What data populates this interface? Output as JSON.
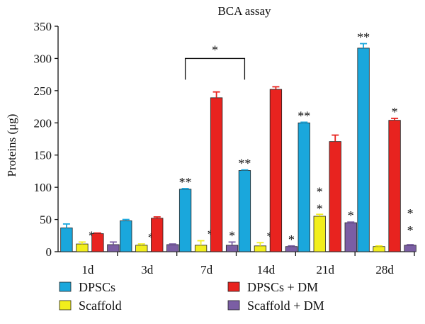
{
  "chart_data": {
    "type": "bar",
    "title": "BCA assay",
    "xlabel": "",
    "ylabel": "Proteins (μg)",
    "ylim": [
      0,
      350
    ],
    "yticks": [
      0,
      50,
      100,
      150,
      200,
      250,
      300,
      350
    ],
    "grid": false,
    "legend_placement": "bottom",
    "categories": [
      "1d",
      "3d",
      "7d",
      "14d",
      "21d",
      "28d"
    ],
    "series": [
      {
        "name": "DPSCs",
        "color": "#1aa7dc",
        "values": [
          37,
          48,
          97,
          126,
          200,
          316
        ],
        "errors": [
          6,
          2,
          1,
          1,
          1,
          7
        ],
        "annotations": [
          "",
          "",
          "**",
          "**",
          "**",
          "**"
        ]
      },
      {
        "name": "Scaffold",
        "color": "#f2ee1c",
        "values": [
          12,
          10,
          10,
          9,
          55,
          8
        ],
        "errors": [
          3,
          2,
          7,
          5,
          3,
          1
        ],
        "annotations": [
          "*",
          "*",
          "*",
          "*",
          "**",
          ""
        ]
      },
      {
        "name": "DPSCs + DM",
        "color": "#e8231f",
        "values": [
          28,
          52,
          239,
          252,
          171,
          204
        ],
        "errors": [
          1,
          2,
          9,
          4,
          10,
          3
        ],
        "annotations": [
          "",
          "",
          "",
          "",
          "",
          "*"
        ]
      },
      {
        "name": "Scaffold + DM",
        "color": "#7b5ea4",
        "values": [
          11,
          11,
          10,
          8,
          45,
          10
        ],
        "errors": [
          4,
          1,
          5,
          1,
          1,
          1
        ],
        "annotations": [
          "",
          "",
          "*",
          "*",
          "*",
          "**"
        ]
      }
    ],
    "bracket": {
      "from_category": "7d",
      "to_category": "14d",
      "y": 300,
      "label": "*"
    }
  }
}
